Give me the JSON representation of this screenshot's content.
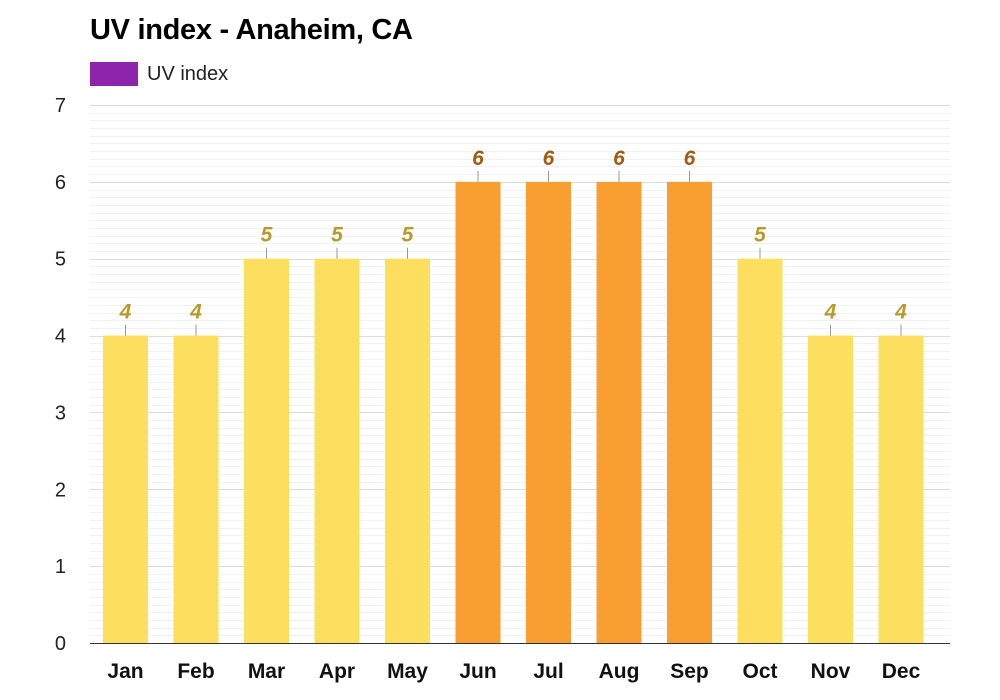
{
  "chart_data": {
    "type": "bar",
    "title": "UV index - Anaheim, CA",
    "legend": [
      {
        "label": "UV index",
        "color": "#8e24aa"
      }
    ],
    "legend_position": "top-left",
    "categories": [
      "Jan",
      "Feb",
      "Mar",
      "Apr",
      "May",
      "Jun",
      "Jul",
      "Aug",
      "Sep",
      "Oct",
      "Nov",
      "Dec"
    ],
    "series": [
      {
        "name": "UV index",
        "values": [
          4,
          4,
          5,
          5,
          5,
          6,
          6,
          6,
          6,
          5,
          4,
          4
        ]
      }
    ],
    "ylim": [
      0,
      7
    ],
    "yticks": [
      0,
      1,
      2,
      3,
      4,
      5,
      6,
      7
    ],
    "grid": true,
    "colors": {
      "moderate_bar": "#fcdf5f",
      "moderate_label": "#b89a2a",
      "high_bar": "#f99f32",
      "high_label": "#a15c12"
    }
  }
}
